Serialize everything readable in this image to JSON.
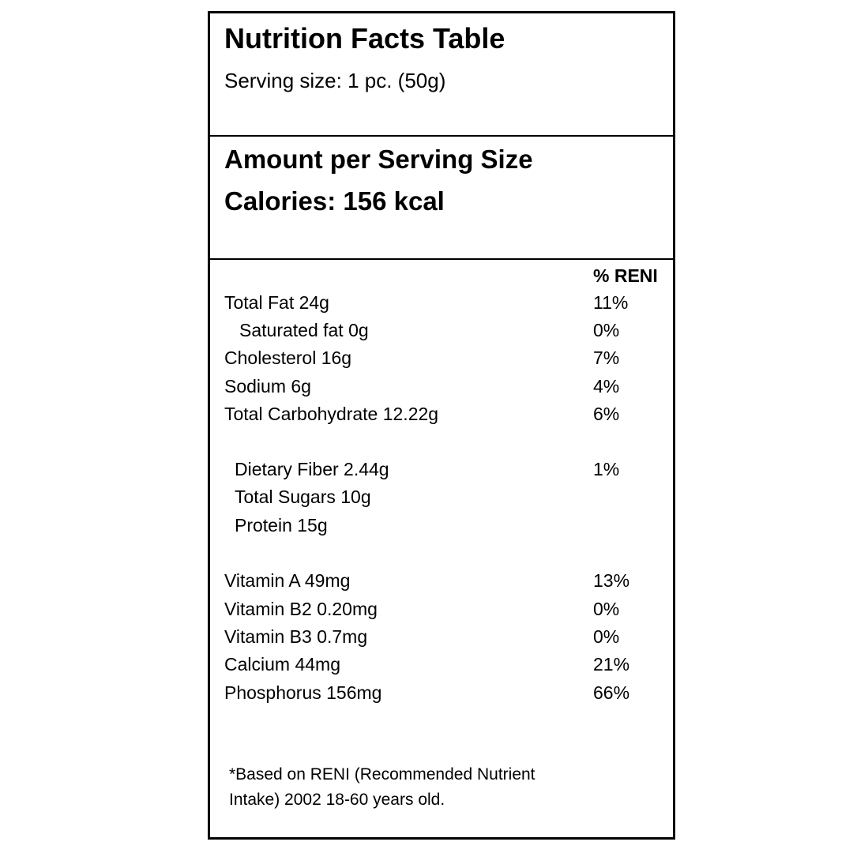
{
  "header": {
    "title": "Nutrition Facts Table",
    "serving_size": "Serving size: 1 pc. (50g)"
  },
  "amount": {
    "heading": "Amount per Serving Size",
    "calories": "Calories: 156 kcal"
  },
  "table": {
    "reni_header": "% RENI",
    "rows": [
      [
        "Total Fat 24g",
        "11%"
      ],
      [
        "Saturated fat 0g",
        "0%"
      ],
      [
        "Cholesterol 16g",
        "7%"
      ],
      [
        "Sodium 6g",
        "4%"
      ],
      [
        "Total Carbohydrate 12.22g",
        "6%"
      ],
      [
        "Dietary Fiber 2.44g",
        "1%"
      ],
      [
        "Total Sugars 10g"
      ],
      [
        "Protein 15g"
      ],
      [
        "Vitamin A 49mg",
        "13%"
      ],
      [
        "Vitamin B2 0.20mg",
        "0%"
      ],
      [
        "Vitamin B3 0.7mg",
        "0%"
      ],
      [
        "Calcium 44mg",
        "21%"
      ],
      [
        "Phosphorus 156mg",
        "66%"
      ]
    ]
  },
  "footnote": [
    "*Based on RENI (Recommended Nutrient",
    "Intake) 2002 18-60 years old."
  ]
}
